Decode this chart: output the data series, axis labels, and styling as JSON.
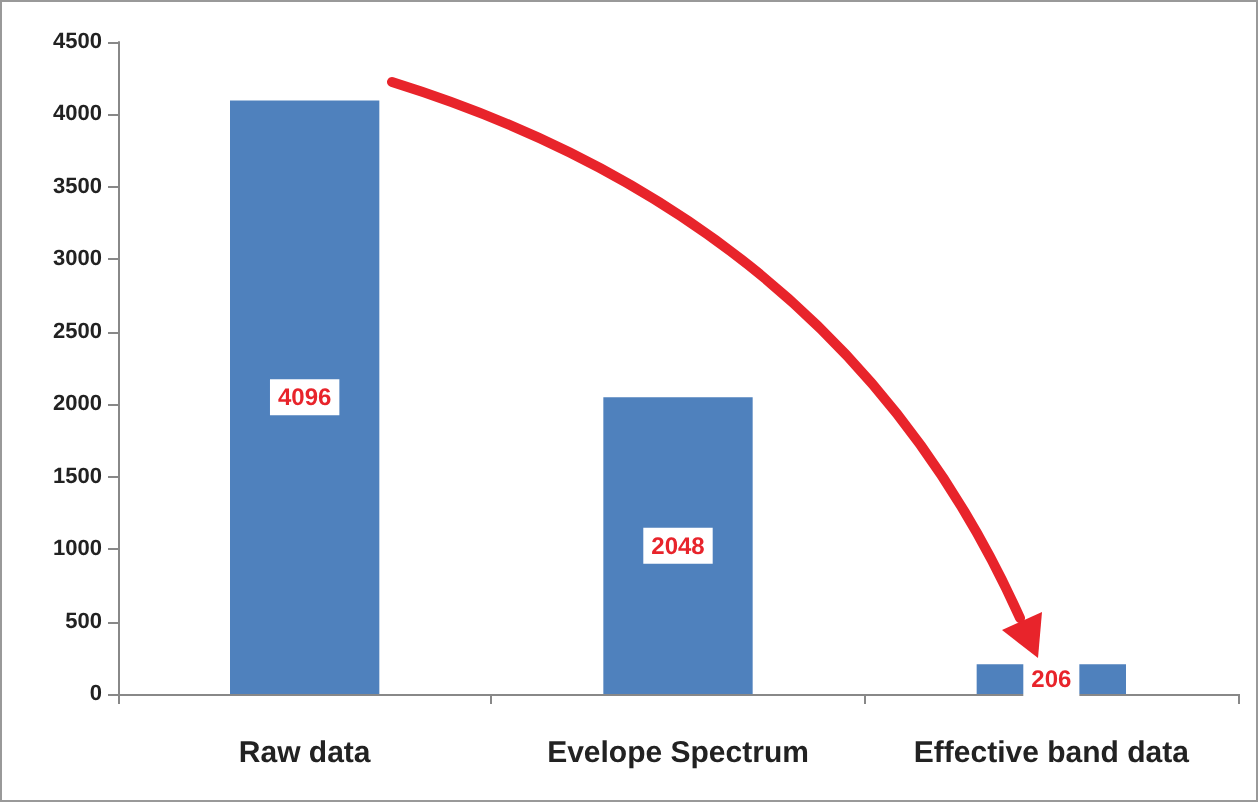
{
  "chart_data": {
    "type": "bar",
    "categories": [
      "Raw data",
      "Evelope Spectrum",
      "Effective band data"
    ],
    "values": [
      4096,
      2048,
      206
    ],
    "color": "#4f81bd",
    "ylim": [
      0,
      4500
    ],
    "yticks": [
      0,
      500,
      1000,
      1500,
      2000,
      2500,
      3000,
      3500,
      4000,
      4500
    ],
    "grid": false,
    "data_labels": true
  }
}
